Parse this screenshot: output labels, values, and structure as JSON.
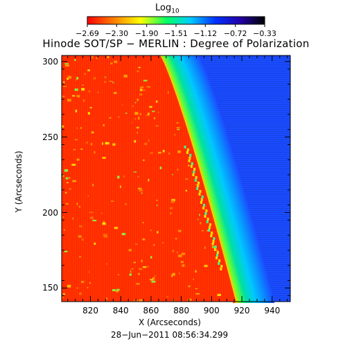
{
  "colorbar": {
    "title_main": "Log",
    "title_sub": "10",
    "tick_labels": [
      "−2.69",
      "−2.30",
      "−1.90",
      "−1.51",
      "−1.12",
      "−0.72",
      "−0.33"
    ],
    "tick_values": [
      -2.69,
      -2.3,
      -1.9,
      -1.51,
      -1.12,
      -0.72,
      -0.33
    ],
    "range": [
      -2.69,
      -0.33
    ],
    "colors": [
      "#ff0000",
      "#ff9900",
      "#ffff00",
      "#00ff66",
      "#00ccff",
      "#0033ff",
      "#2200aa",
      "#000000"
    ]
  },
  "chart_data": {
    "type": "heatmap",
    "title": "Hinode SOT/SP − MERLIN : Degree of Polarization",
    "xlabel": "X (Arcseconds)",
    "ylabel": "Y (Arcseconds)",
    "x_ticks": [
      820,
      840,
      860,
      880,
      900,
      920,
      940
    ],
    "y_ticks": [
      150,
      200,
      250,
      300
    ],
    "x_tick_labels": [
      "820",
      "840",
      "860",
      "880",
      "900",
      "920",
      "940"
    ],
    "y_tick_labels": [
      "150",
      "200",
      "250",
      "300"
    ],
    "xlim": [
      801,
      952
    ],
    "ylim": [
      141,
      304
    ],
    "limb_x_at_ymax": 866,
    "limb_x_at_ymin": 916,
    "disk_value": -2.6,
    "offlimb_value": -1.0,
    "grid": false
  },
  "timestamp": "28−Jun−2011 08:56:34.299",
  "colors": {
    "disk": "#ff2a00",
    "limb": "#00e090",
    "offlimb": "#1a4dff"
  }
}
